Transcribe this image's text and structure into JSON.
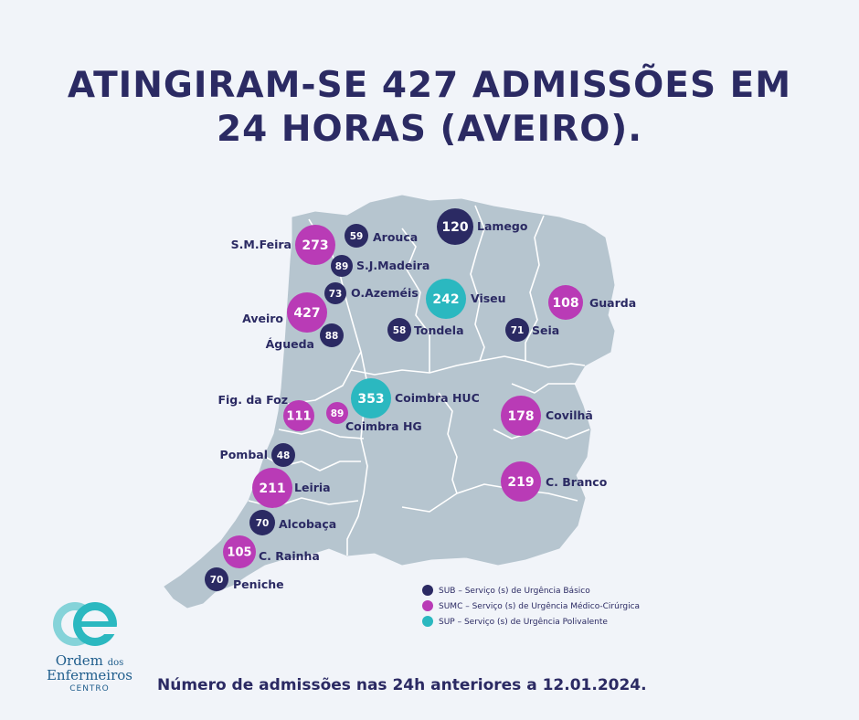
{
  "title": {
    "line1": "ATINGIRAM-SE 427 ADMISSÕES EM",
    "line2": "24 HORAS (AVEIRO)."
  },
  "colors": {
    "sub": "#2b2a63",
    "sumc": "#b93bb6",
    "sup": "#2bb8c0",
    "map_fill": "#b6c5cf",
    "map_lines": "#ffffff",
    "background": "#f1f4f9"
  },
  "hospitals": [
    {
      "name": "S.M.Feira",
      "value": 273,
      "type": "sumc"
    },
    {
      "name": "Arouca",
      "value": 59,
      "type": "sub"
    },
    {
      "name": "Lamego",
      "value": 120,
      "type": "sub"
    },
    {
      "name": "S.J.Madeira",
      "value": 89,
      "type": "sub"
    },
    {
      "name": "O.Azeméis",
      "value": 73,
      "type": "sub"
    },
    {
      "name": "Viseu",
      "value": 242,
      "type": "sup"
    },
    {
      "name": "Guarda",
      "value": 108,
      "type": "sumc"
    },
    {
      "name": "Aveiro",
      "value": 427,
      "type": "sumc"
    },
    {
      "name": "Águeda",
      "value": 88,
      "type": "sub"
    },
    {
      "name": "Tondela",
      "value": 58,
      "type": "sub"
    },
    {
      "name": "Seia",
      "value": 71,
      "type": "sub"
    },
    {
      "name": "Coimbra HUC",
      "value": 353,
      "type": "sup"
    },
    {
      "name": "Fig. da Foz",
      "value": 111,
      "type": "sumc"
    },
    {
      "name": "Coimbra HG",
      "value": 89,
      "type": "sumc"
    },
    {
      "name": "Covilhã",
      "value": 178,
      "type": "sumc"
    },
    {
      "name": "Pombal",
      "value": 48,
      "type": "sub"
    },
    {
      "name": "Leiria",
      "value": 211,
      "type": "sumc"
    },
    {
      "name": "C. Branco",
      "value": 219,
      "type": "sumc"
    },
    {
      "name": "Alcobaça",
      "value": 70,
      "type": "sub"
    },
    {
      "name": "C. Rainha",
      "value": 105,
      "type": "sumc"
    },
    {
      "name": "Peniche",
      "value": 70,
      "type": "sub"
    }
  ],
  "legend": [
    {
      "type": "sub",
      "label": "SUB – Serviço (s) de Urgência Básico"
    },
    {
      "type": "sumc",
      "label": "SUMC – Serviço (s) de Urgência Médico-Cirúrgica"
    },
    {
      "type": "sup",
      "label": "SUP – Serviço (s) de Urgência Polivalente"
    }
  ],
  "footer": "Número de admissões nas 24h anteriores a 12.01.2024.",
  "logo": {
    "line1a": "Ordem",
    "line1b": "dos",
    "line2": "Enfermeiros",
    "line3": "CENTRO"
  }
}
